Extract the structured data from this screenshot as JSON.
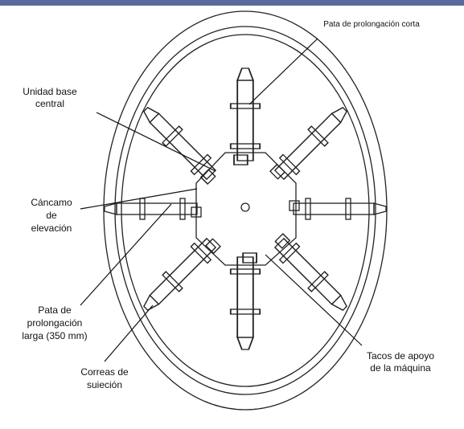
{
  "labels": {
    "short_leg": [
      "Pata de prolongación corta"
    ],
    "central_base": [
      "Unidad base",
      "central"
    ],
    "lifting_eye": [
      "Cáncamo",
      "de",
      "elevación"
    ],
    "long_leg": [
      "Pata de",
      "prolongación",
      "larga (350 mm)"
    ],
    "straps": [
      "Correas de",
      "suieción"
    ],
    "pads": [
      "Tacos de apoyo",
      "de la máquina"
    ]
  }
}
